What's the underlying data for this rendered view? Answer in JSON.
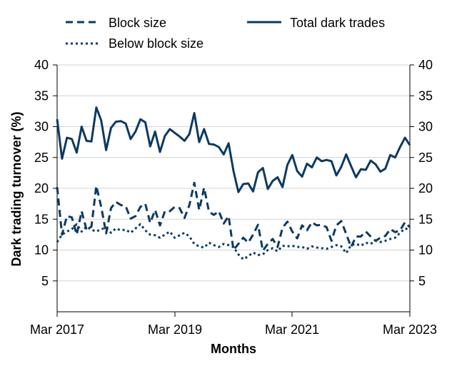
{
  "chart_data": {
    "type": "line",
    "title": "",
    "xlabel": "Months",
    "ylabel": "Dark trading turnover (%)",
    "ylim": [
      0,
      40
    ],
    "yticks": [
      "5",
      "10",
      "15",
      "20",
      "25",
      "30",
      "35",
      "40"
    ],
    "xticks": [
      "Mar 2017",
      "Mar 2019",
      "Mar 2021",
      "Mar 2023"
    ],
    "xlim": [
      "2017-03",
      "2023-03"
    ],
    "grid": "horizontal",
    "dual_y_axis": true,
    "legend_position": "top",
    "colors": {
      "series": "#0b3a63",
      "grid": "#d4d4d4",
      "axis": "#000000"
    },
    "series": [
      {
        "name": "Block size",
        "style": "dashed",
        "x": [
          "2017-03",
          "2017-04",
          "2017-05",
          "2017-06",
          "2017-07",
          "2017-08",
          "2017-09",
          "2017-10",
          "2017-11",
          "2017-12",
          "2018-01",
          "2018-02",
          "2018-03",
          "2018-04",
          "2018-05",
          "2018-06",
          "2018-07",
          "2018-08",
          "2018-09",
          "2018-10",
          "2018-11",
          "2018-12",
          "2019-01",
          "2019-02",
          "2019-03",
          "2019-04",
          "2019-05",
          "2019-06",
          "2019-07",
          "2019-08",
          "2019-09",
          "2019-10",
          "2019-11",
          "2019-12",
          "2020-01",
          "2020-02",
          "2020-03",
          "2020-04",
          "2020-05",
          "2020-06",
          "2020-07",
          "2020-08",
          "2020-09",
          "2020-10",
          "2020-11",
          "2020-12",
          "2021-01",
          "2021-02",
          "2021-03",
          "2021-04",
          "2021-05",
          "2021-06",
          "2021-07",
          "2021-08",
          "2021-09",
          "2021-10",
          "2021-11",
          "2021-12",
          "2022-01",
          "2022-02",
          "2022-03",
          "2022-04",
          "2022-05",
          "2022-06",
          "2022-07",
          "2022-08",
          "2022-09",
          "2022-10",
          "2022-11",
          "2022-12",
          "2023-01",
          "2023-02",
          "2023-03"
        ],
        "values": [
          20.2,
          12.5,
          15.5,
          15.3,
          12.5,
          16.3,
          13.3,
          13.8,
          20.4,
          17.0,
          12.7,
          16.8,
          17.8,
          17.3,
          17.1,
          15.1,
          15.5,
          17.0,
          17.5,
          14.4,
          16.5,
          14.0,
          16.3,
          16.3,
          17.0,
          16.8,
          15.2,
          17.3,
          20.9,
          16.5,
          20.1,
          16.2,
          15.7,
          16.3,
          14.3,
          15.5,
          10.0,
          11.0,
          12.0,
          11.2,
          12.5,
          14.1,
          9.9,
          11.0,
          11.8,
          10.5,
          13.6,
          14.6,
          13.0,
          11.9,
          14.0,
          13.2,
          14.5,
          14.0,
          14.1,
          13.7,
          11.5,
          14.0,
          14.7,
          12.6,
          10.5,
          12.2,
          12.2,
          13.0,
          12.2,
          11.5,
          12.0,
          12.3,
          13.4,
          12.9,
          13.2,
          14.5,
          13.7
        ]
      },
      {
        "name": "Below block size",
        "style": "dotted",
        "x": [
          "2017-03",
          "2017-04",
          "2017-05",
          "2017-06",
          "2017-07",
          "2017-08",
          "2017-09",
          "2017-10",
          "2017-11",
          "2017-12",
          "2018-01",
          "2018-02",
          "2018-03",
          "2018-04",
          "2018-05",
          "2018-06",
          "2018-07",
          "2018-08",
          "2018-09",
          "2018-10",
          "2018-11",
          "2018-12",
          "2019-01",
          "2019-02",
          "2019-03",
          "2019-04",
          "2019-05",
          "2019-06",
          "2019-07",
          "2019-08",
          "2019-09",
          "2019-10",
          "2019-11",
          "2019-12",
          "2020-01",
          "2020-02",
          "2020-03",
          "2020-04",
          "2020-05",
          "2020-06",
          "2020-07",
          "2020-08",
          "2020-09",
          "2020-10",
          "2020-11",
          "2020-12",
          "2021-01",
          "2021-02",
          "2021-03",
          "2021-04",
          "2021-05",
          "2021-06",
          "2021-07",
          "2021-08",
          "2021-09",
          "2021-10",
          "2021-11",
          "2021-12",
          "2022-01",
          "2022-02",
          "2022-03",
          "2022-04",
          "2022-05",
          "2022-06",
          "2022-07",
          "2022-08",
          "2022-09",
          "2022-10",
          "2022-11",
          "2022-12",
          "2023-01",
          "2023-02",
          "2023-03"
        ],
        "values": [
          11.3,
          12.5,
          13.0,
          13.4,
          14.2,
          13.0,
          13.8,
          13.3,
          13.0,
          13.4,
          13.6,
          12.8,
          13.5,
          13.2,
          13.3,
          12.8,
          13.5,
          14.2,
          13.2,
          12.5,
          12.4,
          12.0,
          12.5,
          13.0,
          12.0,
          12.4,
          12.8,
          12.2,
          11.0,
          10.6,
          10.4,
          11.2,
          10.8,
          10.5,
          11.0,
          10.8,
          10.5,
          9.3,
          8.5,
          9.0,
          9.6,
          9.2,
          9.3,
          10.0,
          10.3,
          9.8,
          10.7,
          10.6,
          10.7,
          10.5,
          10.5,
          10.2,
          10.6,
          10.4,
          10.3,
          10.2,
          10.5,
          10.8,
          10.6,
          9.5,
          10.8,
          11.0,
          10.7,
          11.2,
          11.0,
          11.5,
          11.3,
          11.5,
          11.8,
          12.0,
          12.8,
          13.5,
          13.3
        ]
      },
      {
        "name": "Total dark trades",
        "style": "solid",
        "x": [
          "2017-03",
          "2017-04",
          "2017-05",
          "2017-06",
          "2017-07",
          "2017-08",
          "2017-09",
          "2017-10",
          "2017-11",
          "2017-12",
          "2018-01",
          "2018-02",
          "2018-03",
          "2018-04",
          "2018-05",
          "2018-06",
          "2018-07",
          "2018-08",
          "2018-09",
          "2018-10",
          "2018-11",
          "2018-12",
          "2019-01",
          "2019-02",
          "2019-03",
          "2019-04",
          "2019-05",
          "2019-06",
          "2019-07",
          "2019-08",
          "2019-09",
          "2019-10",
          "2019-11",
          "2019-12",
          "2020-01",
          "2020-02",
          "2020-03",
          "2020-04",
          "2020-05",
          "2020-06",
          "2020-07",
          "2020-08",
          "2020-09",
          "2020-10",
          "2020-11",
          "2020-12",
          "2021-01",
          "2021-02",
          "2021-03",
          "2021-04",
          "2021-05",
          "2021-06",
          "2021-07",
          "2021-08",
          "2021-09",
          "2021-10",
          "2021-11",
          "2021-12",
          "2022-01",
          "2022-02",
          "2022-03",
          "2022-04",
          "2022-05",
          "2022-06",
          "2022-07",
          "2022-08",
          "2022-09",
          "2022-10",
          "2022-11",
          "2022-12",
          "2023-01",
          "2023-02",
          "2023-03"
        ],
        "values": [
          31.2,
          24.8,
          28.2,
          28.0,
          25.8,
          30.0,
          27.7,
          27.6,
          33.1,
          31.0,
          26.2,
          29.8,
          30.8,
          30.9,
          30.5,
          28.0,
          29.2,
          31.2,
          30.7,
          26.8,
          29.2,
          25.9,
          28.5,
          29.6,
          29.0,
          28.4,
          27.7,
          28.8,
          32.2,
          27.5,
          29.6,
          27.2,
          27.1,
          26.7,
          25.5,
          27.3,
          22.8,
          19.4,
          20.7,
          20.8,
          19.5,
          22.6,
          23.3,
          19.9,
          21.2,
          21.8,
          20.2,
          23.8,
          25.4,
          22.8,
          21.9,
          24.0,
          23.4,
          25.0,
          24.4,
          24.6,
          24.4,
          22.1,
          23.5,
          25.5,
          23.6,
          21.8,
          23.1,
          23.0,
          24.5,
          23.9,
          22.7,
          23.2,
          25.4,
          25.0,
          26.7,
          28.2,
          27.0
        ]
      }
    ]
  }
}
